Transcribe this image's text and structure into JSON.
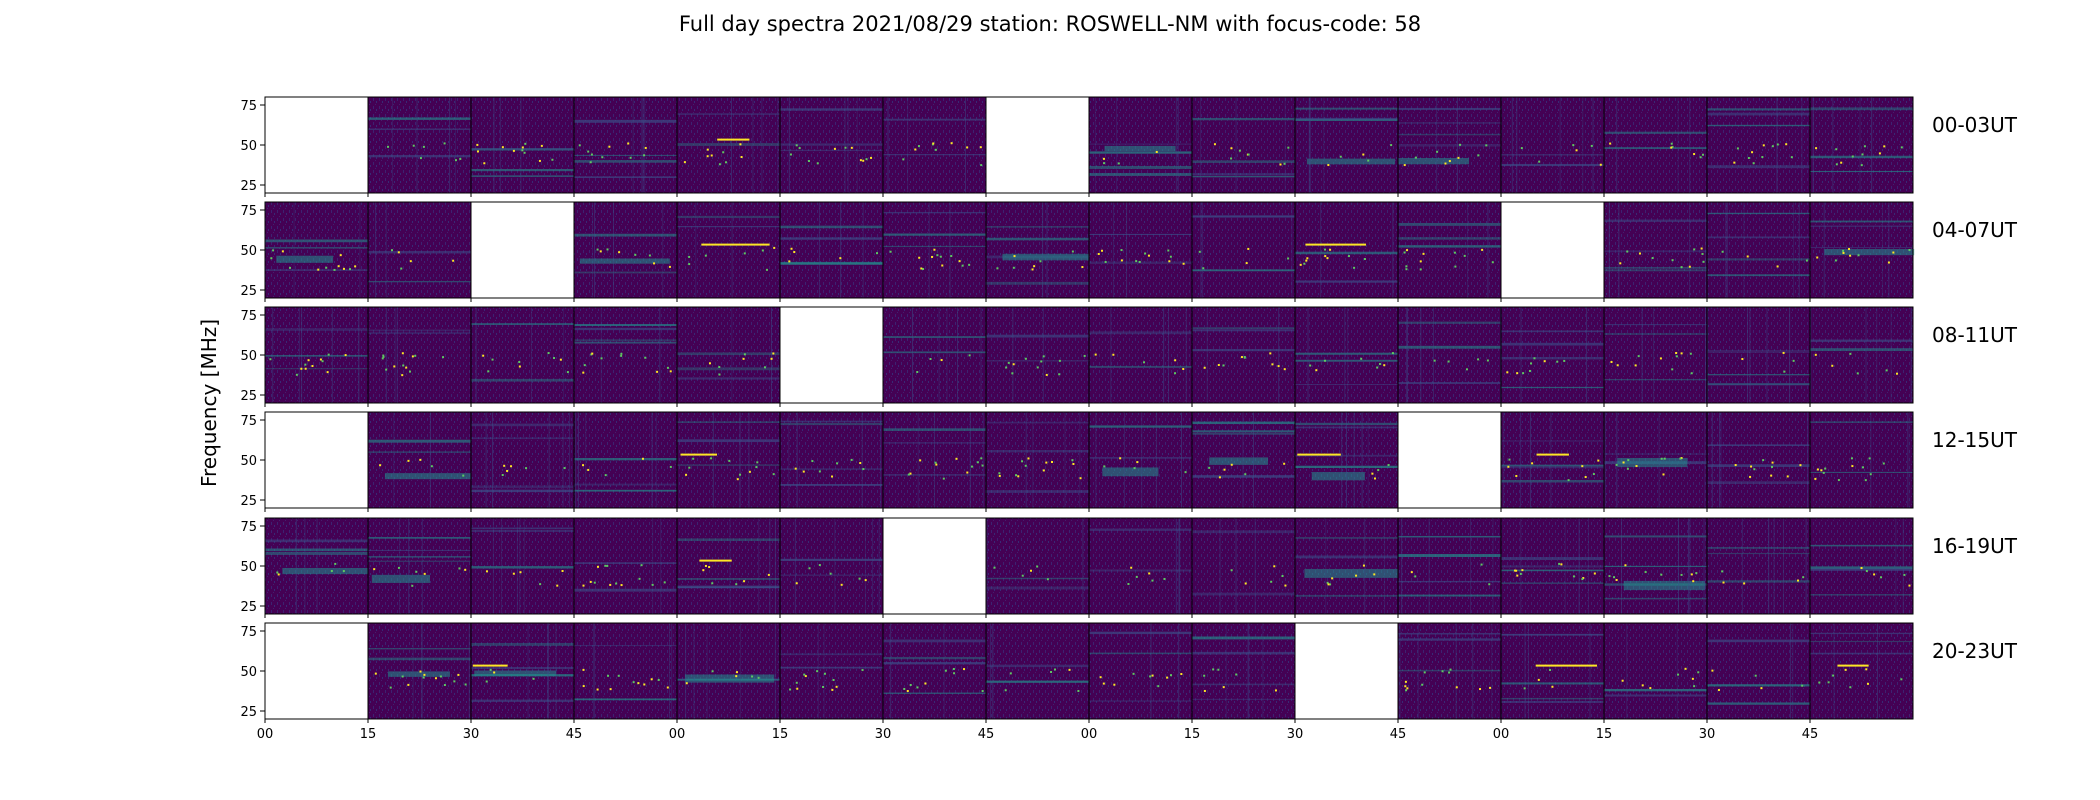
{
  "chart_data": {
    "type": "heatmap",
    "title": "Full day spectra 2021/08/29 station: ROSWELL-NM with focus-code: 58",
    "ylabel": "Frequency [MHz]",
    "xlabel": "",
    "ylim": [
      20,
      80
    ],
    "y_ticks": [
      25,
      50,
      75
    ],
    "x_tick_labels": [
      "00",
      "15",
      "30",
      "45",
      "00",
      "15",
      "30",
      "45",
      "00",
      "15",
      "30",
      "45",
      "00",
      "15",
      "30",
      "45"
    ],
    "colormap": [
      "#440154",
      "#3b528b",
      "#21918c",
      "#5ec962",
      "#fde725"
    ],
    "rows": [
      {
        "label": "00-03UT",
        "missing_panels": [
          0,
          7
        ]
      },
      {
        "label": "04-07UT",
        "missing_panels": [
          2,
          12
        ]
      },
      {
        "label": "08-11UT",
        "missing_panels": [
          5
        ]
      },
      {
        "label": "12-15UT",
        "missing_panels": [
          0,
          11
        ]
      },
      {
        "label": "16-19UT",
        "missing_panels": [
          6
        ]
      },
      {
        "label": "20-23UT",
        "missing_panels": [
          0,
          10
        ]
      }
    ],
    "panels_per_row": 16,
    "minutes_per_panel": 15
  }
}
